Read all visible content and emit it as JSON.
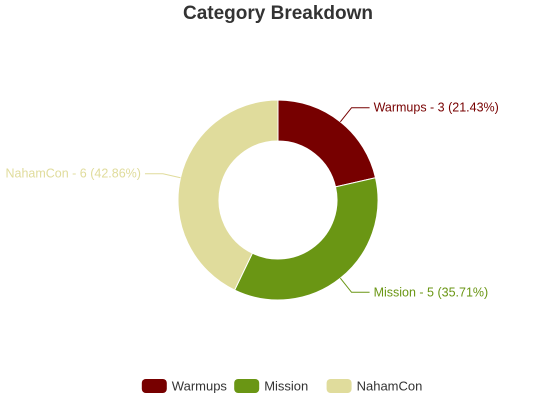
{
  "chart_data": {
    "type": "pie",
    "title": "Category Breakdown",
    "categories": [
      "Warmups",
      "Mission",
      "NahamCon"
    ],
    "values": [
      3,
      5,
      6
    ],
    "colors": [
      "#770000",
      "#6a9614",
      "#e0dc9c"
    ],
    "labels": [
      "Warmups - 3 (21.43%)",
      "Mission - 5 (35.71%)",
      "NahamCon - 6 (42.86%)"
    ],
    "legend": {
      "position": "bottom"
    }
  }
}
